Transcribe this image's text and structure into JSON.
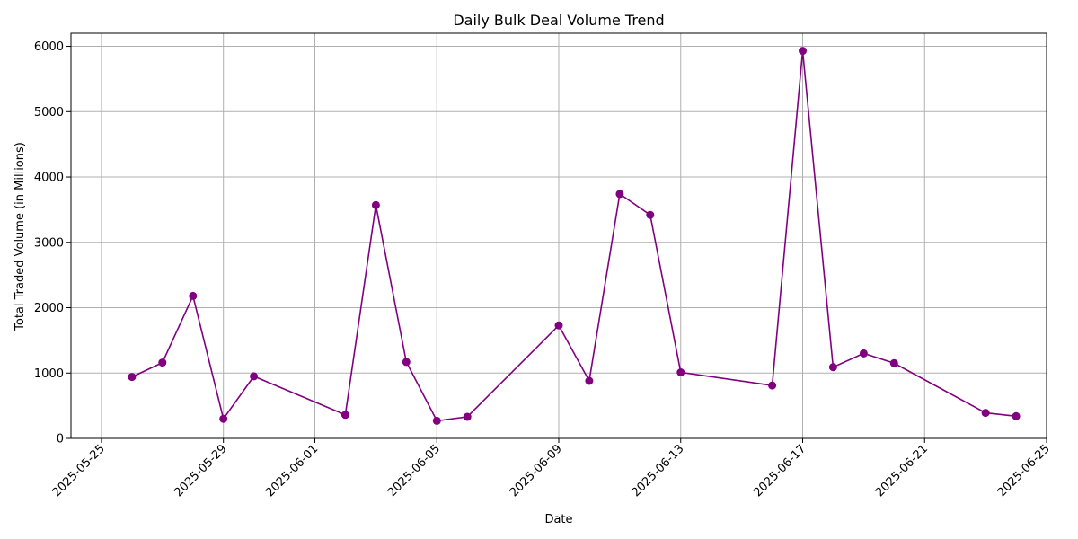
{
  "chart_data": {
    "type": "line",
    "title": "Daily Bulk Deal Volume Trend",
    "xlabel": "Date",
    "ylabel": "Total Traded Volume (in Millions)",
    "xlim": [
      "2025-05-24",
      "2025-06-25"
    ],
    "ylim": [
      0,
      6200
    ],
    "x_ticks": [
      "2025-05-25",
      "2025-05-29",
      "2025-06-01",
      "2025-06-05",
      "2025-06-09",
      "2025-06-13",
      "2025-06-17",
      "2025-06-21",
      "2025-06-25"
    ],
    "y_ticks": [
      0,
      1000,
      2000,
      3000,
      4000,
      5000,
      6000
    ],
    "grid": true,
    "line_color": "#800080",
    "series": [
      {
        "x": [
          "2025-05-26",
          "2025-05-27",
          "2025-05-28",
          "2025-05-29",
          "2025-05-30",
          "2025-06-02",
          "2025-06-03",
          "2025-06-04",
          "2025-06-05",
          "2025-06-06",
          "2025-06-09",
          "2025-06-10",
          "2025-06-11",
          "2025-06-12",
          "2025-06-13",
          "2025-06-16",
          "2025-06-17",
          "2025-06-18",
          "2025-06-19",
          "2025-06-20",
          "2025-06-23",
          "2025-06-24"
        ],
        "y": [
          940,
          1160,
          2180,
          300,
          950,
          360,
          3570,
          1170,
          270,
          330,
          1730,
          880,
          3740,
          3420,
          1010,
          810,
          5930,
          1090,
          1300,
          1150,
          390,
          340
        ]
      }
    ]
  }
}
